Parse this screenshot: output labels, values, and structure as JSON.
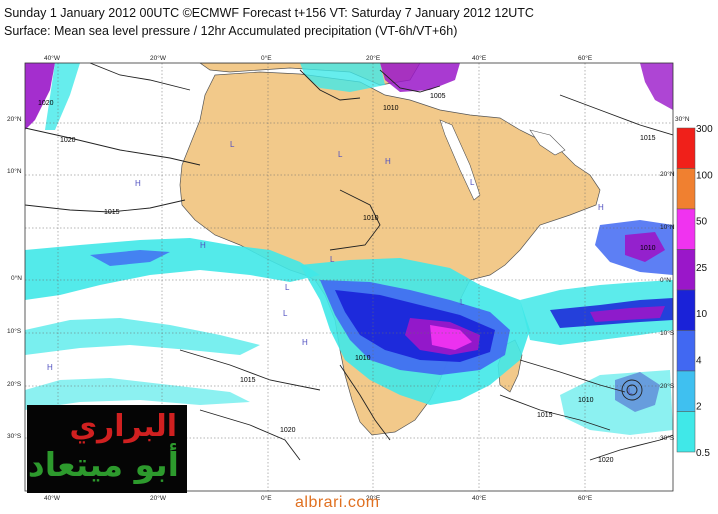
{
  "header": {
    "line1": "Sunday 1 January 2012 00UTC ©ECMWF Forecast t+156 VT: Saturday 7 January 2012 12UTC",
    "line2": "Surface: Mean sea level pressure / 12hr Accumulated precipitation (VT-6h/VT+6h)"
  },
  "map": {
    "lon_labels_top": [
      "40°W",
      "20°W",
      "0°E",
      "20°E",
      "40°E",
      "60°E"
    ],
    "lon_labels_bottom": [
      "40°W",
      "20°W",
      "0°E",
      "20°E",
      "40°E",
      "60°E"
    ],
    "lat_labels_left": [
      "20°N",
      "10°N",
      "0°N",
      "10°S",
      "20°S",
      "30°S"
    ],
    "lat_labels_right": [
      "30°N",
      "20°N",
      "10°N",
      "0°N",
      "10°S",
      "20°S",
      "30°S"
    ],
    "isobar_labels": [
      "1020",
      "1015",
      "1010",
      "1015",
      "1010",
      "1020",
      "1015",
      "1010",
      "1020",
      "1010",
      "1005",
      "1015",
      "1010",
      "1020"
    ],
    "pressure_centres": [
      "H",
      "H",
      "H",
      "L",
      "L",
      "L",
      "L",
      "H",
      "L",
      "L",
      "H",
      "L",
      "H",
      "L"
    ],
    "colors": {
      "ocean": "#ffffff",
      "land": "#f2c98a",
      "coast": "#555555"
    }
  },
  "colorbar": {
    "labels": [
      "300",
      "100",
      "50",
      "25",
      "10",
      "4",
      "2",
      "0.5"
    ],
    "colors": [
      "#f0201a",
      "#f08030",
      "#f033f0",
      "#9a17c9",
      "#1a22d8",
      "#4168f2",
      "#3fc0f0",
      "#40e8e8"
    ]
  },
  "logo": {
    "line1": "البراري",
    "line2": "أبو ميتعاد"
  },
  "website": "albrari.com"
}
